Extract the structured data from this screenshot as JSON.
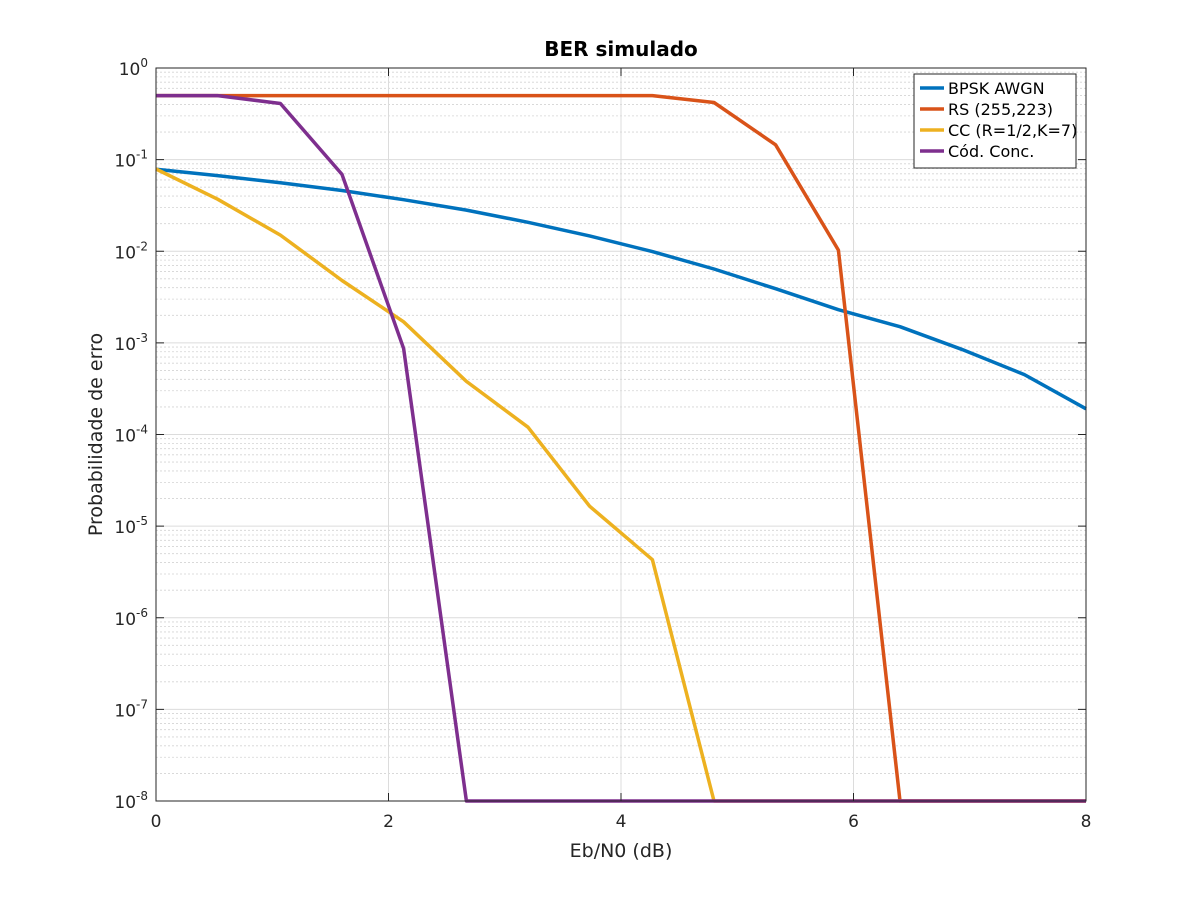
{
  "chart_data": {
    "type": "line",
    "title": "BER simulado",
    "xlabel": "Eb/N0 (dB)",
    "ylabel": "Probabilidade de erro",
    "xlim": [
      0,
      8
    ],
    "ylim": [
      1e-08,
      1
    ],
    "yscale": "log",
    "grid": true,
    "minor_grid": true,
    "legend_position": "top-right",
    "x_ticks": [
      {
        "value": 0,
        "label": "0"
      },
      {
        "value": 2,
        "label": "2"
      },
      {
        "value": 4,
        "label": "4"
      },
      {
        "value": 6,
        "label": "6"
      },
      {
        "value": 8,
        "label": "8"
      }
    ],
    "y_ticks": [
      {
        "exp": 0,
        "base": "10",
        "sup": "0"
      },
      {
        "exp": -1,
        "base": "10",
        "sup": "-1"
      },
      {
        "exp": -2,
        "base": "10",
        "sup": "-2"
      },
      {
        "exp": -3,
        "base": "10",
        "sup": "-3"
      },
      {
        "exp": -4,
        "base": "10",
        "sup": "-4"
      },
      {
        "exp": -5,
        "base": "10",
        "sup": "-5"
      },
      {
        "exp": -6,
        "base": "10",
        "sup": "-6"
      },
      {
        "exp": -7,
        "base": "10",
        "sup": "-7"
      },
      {
        "exp": -8,
        "base": "10",
        "sup": "-8"
      }
    ],
    "series": [
      {
        "name": "BPSK AWGN",
        "color": "#0072BD",
        "points": [
          [
            0,
            0.0786
          ],
          [
            0.53,
            0.067
          ],
          [
            1.07,
            0.056
          ],
          [
            1.6,
            0.046
          ],
          [
            2.13,
            0.0365
          ],
          [
            2.67,
            0.0281
          ],
          [
            3.2,
            0.0207
          ],
          [
            3.73,
            0.0147
          ],
          [
            4.27,
            0.0099
          ],
          [
            4.8,
            0.0064
          ],
          [
            5.33,
            0.0039
          ],
          [
            5.87,
            0.0023
          ],
          [
            6.4,
            0.0015
          ],
          [
            6.93,
            0.00085
          ],
          [
            7.47,
            0.00045
          ],
          [
            8.0,
            0.000191
          ]
        ]
      },
      {
        "name": "RS (255,223)",
        "color": "#D95319",
        "points": [
          [
            0,
            0.5
          ],
          [
            0.53,
            0.5
          ],
          [
            1.07,
            0.5
          ],
          [
            1.6,
            0.5
          ],
          [
            2.13,
            0.5
          ],
          [
            2.67,
            0.5
          ],
          [
            3.2,
            0.5
          ],
          [
            3.73,
            0.5
          ],
          [
            4.27,
            0.5
          ],
          [
            4.8,
            0.42
          ],
          [
            5.33,
            0.145
          ],
          [
            5.87,
            0.0103
          ],
          [
            6.4,
            1e-08
          ],
          [
            6.93,
            1e-08
          ],
          [
            7.47,
            1e-08
          ],
          [
            8.0,
            1e-08
          ]
        ]
      },
      {
        "name": "CC (R=1/2,K=7)",
        "color": "#EDB120",
        "points": [
          [
            0,
            0.079
          ],
          [
            0.53,
            0.037
          ],
          [
            1.07,
            0.015
          ],
          [
            1.6,
            0.0048
          ],
          [
            2.13,
            0.0017
          ],
          [
            2.67,
            0.00038
          ],
          [
            3.2,
            0.00012
          ],
          [
            3.73,
            1.65e-05
          ],
          [
            4.27,
            4.3e-06
          ],
          [
            4.8,
            1e-08
          ],
          [
            5.33,
            1e-08
          ],
          [
            5.87,
            1e-08
          ],
          [
            6.4,
            1e-08
          ],
          [
            6.93,
            1e-08
          ],
          [
            7.47,
            1e-08
          ],
          [
            8.0,
            1e-08
          ]
        ]
      },
      {
        "name": "Cód. Conc.",
        "color": "#7E2F8E",
        "points": [
          [
            0,
            0.5
          ],
          [
            0.53,
            0.5
          ],
          [
            1.07,
            0.41
          ],
          [
            1.6,
            0.069
          ],
          [
            2.13,
            0.00087
          ],
          [
            2.67,
            1e-08
          ],
          [
            3.2,
            1e-08
          ],
          [
            3.73,
            1e-08
          ],
          [
            4.27,
            1e-08
          ],
          [
            4.8,
            1e-08
          ],
          [
            5.33,
            1e-08
          ],
          [
            5.87,
            1e-08
          ],
          [
            6.4,
            1e-08
          ],
          [
            6.93,
            1e-08
          ],
          [
            7.47,
            1e-08
          ],
          [
            8.0,
            1e-08
          ]
        ]
      }
    ]
  }
}
